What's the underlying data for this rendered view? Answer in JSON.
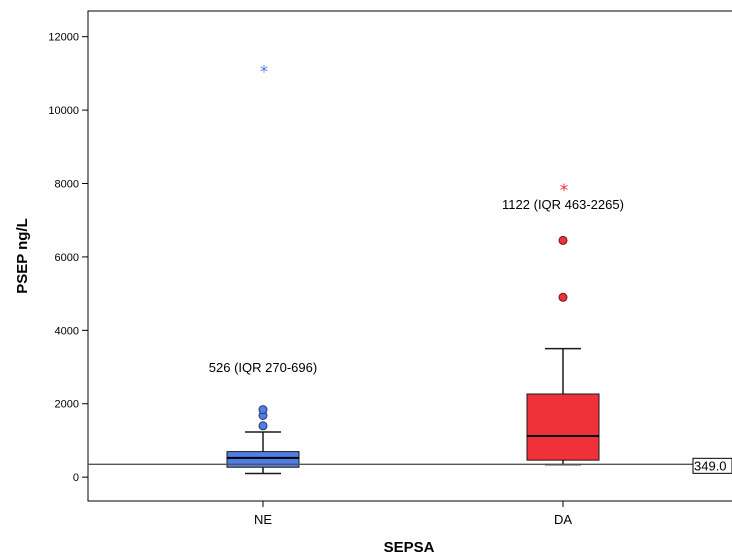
{
  "chart_data": {
    "type": "box",
    "xlabel": "SEPSA",
    "ylabel": "PSEP ng/L",
    "ylim": [
      -650,
      12700
    ],
    "yticks": [
      0,
      2000,
      4000,
      6000,
      8000,
      10000,
      12000
    ],
    "yticks_text": [
      "0",
      "2000",
      "4000",
      "6000",
      "8000",
      "10000",
      "12000"
    ],
    "categories": [
      "NE",
      "DA"
    ],
    "series": [
      {
        "category": "NE",
        "color": "#4f7fe6",
        "whisker_low": 100,
        "q1": 270,
        "median": 526,
        "q3": 696,
        "whisker_high": 1230,
        "outliers": [
          1400,
          1680,
          1840
        ],
        "extremes": [
          11100
        ],
        "annotation": "526 (IQR 270-696)",
        "annotation_y": 2980
      },
      {
        "category": "DA",
        "color": "#f0313a",
        "whisker_low": 340,
        "q1": 463,
        "median": 1122,
        "q3": 2265,
        "whisker_high": 3500,
        "outliers": [
          4900,
          6450
        ],
        "extremes": [
          7880
        ],
        "annotation": "1122 (IQR 463-2265)",
        "annotation_y": 7420
      }
    ],
    "reference_line": {
      "value": 349.0,
      "label": "349.0"
    },
    "grid": false,
    "legend": "none"
  }
}
